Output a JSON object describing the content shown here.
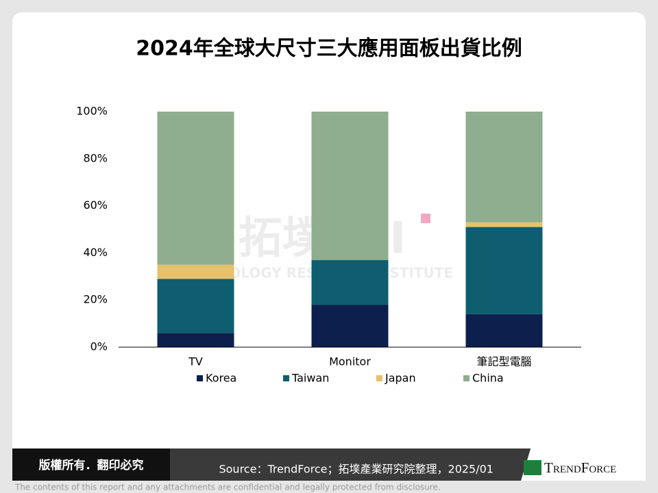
{
  "chart_data": {
    "type": "stacked_bar",
    "title": "2024年全球大尺寸三大應用面板出貨比例",
    "categories": [
      "TV",
      "Monitor",
      "筆記型電腦"
    ],
    "series": [
      {
        "name": "Korea",
        "color": "#0c1f4d",
        "values": [
          6,
          18,
          14
        ]
      },
      {
        "name": "Taiwan",
        "color": "#0e5e6f",
        "values": [
          23,
          19,
          37
        ]
      },
      {
        "name": "Japan",
        "color": "#e6c16c",
        "values": [
          6,
          0,
          2
        ]
      },
      {
        "name": "China",
        "color": "#8fae8f",
        "values": [
          65,
          63,
          47
        ]
      }
    ],
    "ylim": [
      0,
      100
    ],
    "yticks": [
      {
        "value": 0,
        "label": "0%"
      },
      {
        "value": 20,
        "label": "20%"
      },
      {
        "value": 40,
        "label": "40%"
      },
      {
        "value": 60,
        "label": "60%"
      },
      {
        "value": 80,
        "label": "80%"
      },
      {
        "value": 100,
        "label": "100%"
      }
    ],
    "grid": false,
    "legend": "bottom"
  },
  "watermark": {
    "logo": "拓墣TRI",
    "name": "TOPOLOGY RESEARCH INSTITUTE"
  },
  "footer": {
    "copyright": "版權所有．翻印必究",
    "source": "Source：TrendForce；拓墣產業研究院整理，2025/01",
    "logo": "TrendForce",
    "disclaimer": "The contents of this report and any attachments are confidential and legally protected from disclosure."
  }
}
